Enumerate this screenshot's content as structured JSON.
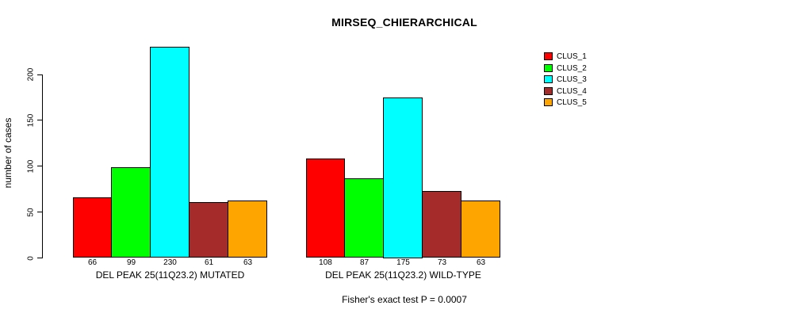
{
  "chart_data": {
    "type": "bar",
    "title": "MIRSEQ_CHIERARCHICAL",
    "ylabel": "number of cases",
    "xlabel": "",
    "categories": [
      "DEL PEAK 25(11Q23.2) MUTATED",
      "DEL PEAK 25(11Q23.2) WILD-TYPE"
    ],
    "series": [
      {
        "name": "CLUS_1",
        "color": "#FF0000",
        "values": [
          66,
          108
        ]
      },
      {
        "name": "CLUS_2",
        "color": "#00FF00",
        "values": [
          99,
          87
        ]
      },
      {
        "name": "CLUS_3",
        "color": "#00FFFF",
        "values": [
          230,
          175
        ]
      },
      {
        "name": "CLUS_4",
        "color": "#A52A2A",
        "values": [
          61,
          73
        ]
      },
      {
        "name": "CLUS_5",
        "color": "#FFA500",
        "values": [
          63,
          63
        ]
      }
    ],
    "bar_value_labels": [
      [
        "66",
        "99",
        "230",
        "61",
        "63"
      ],
      [
        "108",
        "87",
        "175",
        "73",
        "63"
      ]
    ],
    "yticks": [
      "0",
      "50",
      "100",
      "150",
      "200"
    ],
    "ylim": [
      0,
      232
    ],
    "grid": false,
    "legend_position": "top-right",
    "annotation": "Fisher's exact test P = 0.0007"
  }
}
